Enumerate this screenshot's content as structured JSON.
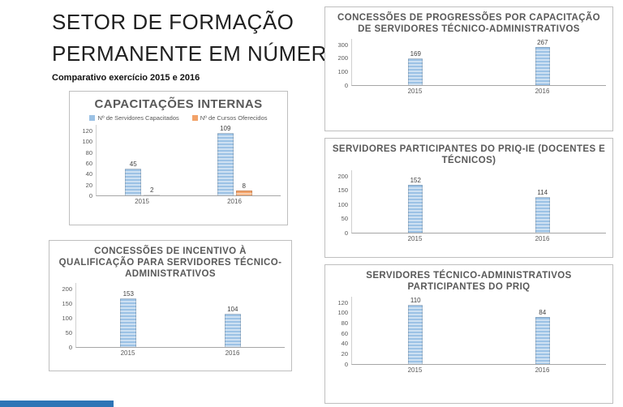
{
  "page": {
    "title_line1": "SETOR DE FORMAÇÃO",
    "title_line2": "PERMANENTE EM NÚMEROS",
    "subtitle": "Comparativo exercício 2015 e 2016"
  },
  "colors": {
    "blue": [
      "#9CC2E5",
      "#CDE0F2"
    ],
    "orange": [
      "#F2A269",
      "#F9CFAE"
    ],
    "footer_accent": "#2E75B6",
    "title_gray": "#595959"
  },
  "chart_data": [
    {
      "type": "bar",
      "title": "CAPACITAÇÕES INTERNAS",
      "categories": [
        "2015",
        "2016"
      ],
      "series": [
        {
          "name": "Nº de Servidores Capacitados",
          "color": "blue",
          "values": [
            45,
            109
          ]
        },
        {
          "name": "Nº de Cursos Oferecidos",
          "color": "orange",
          "values": [
            2,
            8
          ]
        }
      ],
      "ylim": [
        0,
        120
      ],
      "yticks": [
        0,
        20,
        40,
        60,
        80,
        100,
        120
      ],
      "legend": true,
      "grid": false,
      "legend_position": "top"
    },
    {
      "type": "bar",
      "title": "CONCESSÕES DE INCENTIVO À QUALIFICAÇÃO PARA SERVIDORES TÉCNICO-ADMINISTRATIVOS",
      "categories": [
        "2015",
        "2016"
      ],
      "series": [
        {
          "color": "blue",
          "values": [
            153,
            104
          ]
        }
      ],
      "ylim": [
        0,
        200
      ],
      "yticks": [
        0,
        50,
        100,
        150,
        200
      ],
      "legend": false,
      "grid": false
    },
    {
      "type": "bar",
      "title": "CONCESSÕES DE PROGRESSÕES POR CAPACITAÇÃO DE SERVIDORES TÉCNICO-ADMINISTRATIVOS",
      "categories": [
        "2015",
        "2016"
      ],
      "series": [
        {
          "color": "blue",
          "values": [
            169,
            267
          ]
        }
      ],
      "ylim": [
        0,
        300
      ],
      "yticks": [
        0,
        100,
        200,
        300
      ],
      "legend": false,
      "grid": false
    },
    {
      "type": "bar",
      "title": "SERVIDORES PARTICIPANTES DO PRIQ-IE (DOCENTES E TÉCNICOS)",
      "categories": [
        "2015",
        "2016"
      ],
      "series": [
        {
          "color": "blue",
          "values": [
            152,
            114
          ]
        }
      ],
      "ylim": [
        0,
        200
      ],
      "yticks": [
        0,
        50,
        100,
        150,
        200
      ],
      "legend": false,
      "grid": false
    },
    {
      "type": "bar",
      "title": "SERVIDORES TÉCNICO-ADMINISTRATIVOS PARTICIPANTES DO PRIQ",
      "categories": [
        "2015",
        "2016"
      ],
      "series": [
        {
          "color": "blue",
          "values": [
            110,
            84
          ]
        }
      ],
      "ylim": [
        0,
        120
      ],
      "yticks": [
        0,
        20,
        40,
        60,
        80,
        100,
        120
      ],
      "legend": false,
      "grid": false
    }
  ]
}
